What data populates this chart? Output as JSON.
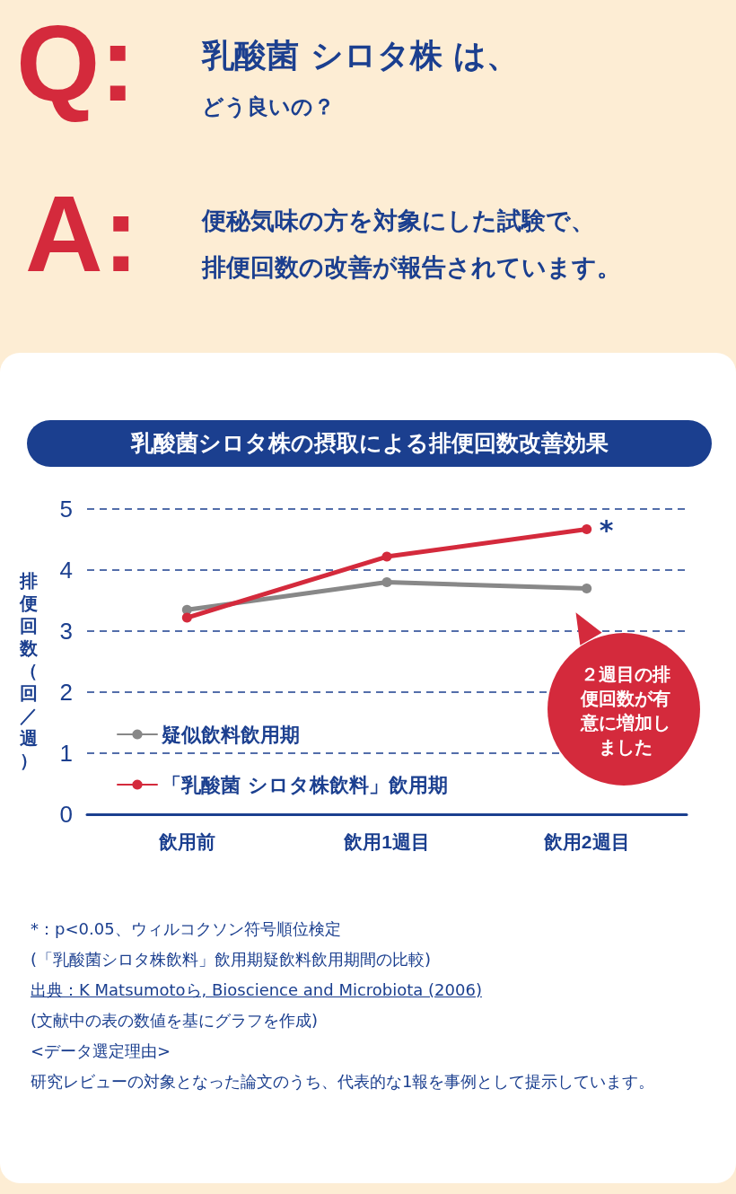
{
  "chart_data": {
    "type": "line",
    "title": "乳酸菌シロタ株の摂取による排便回数改善効果",
    "ylabel": "排便回数（回／週）",
    "categories": [
      "飲用前",
      "飲用1週目",
      "飲用2週目"
    ],
    "series": [
      {
        "name": "疑似飲料飲用期",
        "color": "#888888",
        "values": [
          3.35,
          3.8,
          3.7
        ]
      },
      {
        "name": "「乳酸菌 シロタ株飲料」飲用期",
        "color": "#d42a3c",
        "values": [
          3.22,
          4.22,
          4.67
        ]
      }
    ],
    "ylim": [
      0,
      5
    ],
    "yticks": [
      0,
      1,
      2,
      3,
      4,
      5
    ],
    "grid": "y",
    "legend": "bottom left",
    "marker": "circle",
    "line_style": "solid",
    "annotations": [
      "Q:",
      "乳酸菌 シロタ株 は、",
      "どう良いの？",
      "A:",
      "便秘気味の方を対象にした試験で、",
      "排便回数の改善が報告されています。",
      "２週目の排便回数が有意に増加しました",
      "*：p<0.05、ウィルコクソン符号順位検定",
      "(「乳酸菌シロタ株飲料」飲用期疑飲料飲用期間の比較)",
      "出典：K Matsumotoら, Bioscience and Microbiota (2006)",
      "(文献中の表の数値を基にグラフを作成)",
      "<データ選定理由>",
      "研究レビューの対象となった論文のうち、代表的な1報を事例として提示しています。",
      {
        "text": "*",
        "x": "飲用2週目",
        "y": 4.67
      }
    ]
  }
}
